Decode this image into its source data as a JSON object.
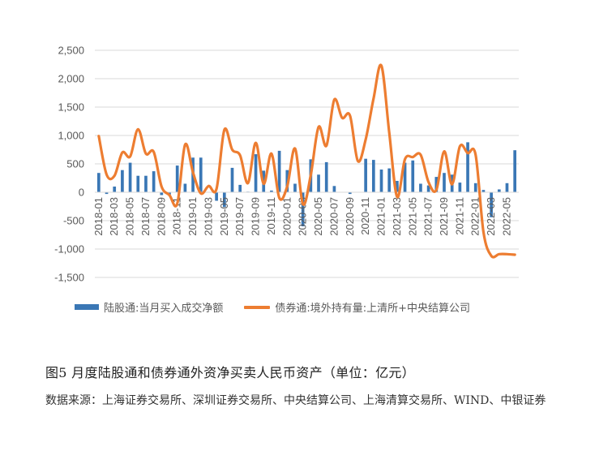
{
  "chart_data": {
    "type": "bar+line",
    "x": [
      "2018-01",
      "2018-02",
      "2018-03",
      "2018-04",
      "2018-05",
      "2018-06",
      "2018-07",
      "2018-08",
      "2018-09",
      "2018-10",
      "2018-11",
      "2018-12",
      "2019-01",
      "2019-02",
      "2019-03",
      "2019-04",
      "2019-05",
      "2019-06",
      "2019-07",
      "2019-08",
      "2019-09",
      "2019-10",
      "2019-11",
      "2019-12",
      "2020-01",
      "2020-02",
      "2020-03",
      "2020-04",
      "2020-05",
      "2020-06",
      "2020-07",
      "2020-08",
      "2020-09",
      "2020-10",
      "2020-11",
      "2020-12",
      "2021-01",
      "2021-02",
      "2021-03",
      "2021-04",
      "2021-05",
      "2021-06",
      "2021-07",
      "2021-08",
      "2021-09",
      "2021-10",
      "2021-11",
      "2021-12",
      "2022-01",
      "2022-02",
      "2022-03",
      "2022-04",
      "2022-05",
      "2022-06"
    ],
    "x_tick_labels": [
      "2018-01",
      "2018-03",
      "2018-05",
      "2018-07",
      "2018-09",
      "2018-11",
      "2019-01",
      "2019-03",
      "2019-05",
      "2019-07",
      "2019-09",
      "2019-11",
      "2020-01",
      "2020-03",
      "2020-05",
      "2020-07",
      "2020-09",
      "2020-11",
      "2021-01",
      "2021-03",
      "2021-05",
      "2021-07",
      "2021-09",
      "2021-11",
      "2022-01",
      "2022-03",
      "2022-05"
    ],
    "y_ticks": [
      "2,500",
      "2,000",
      "1,500",
      "1,000",
      "500",
      "0",
      "-500",
      "-1,000",
      "-1,500"
    ],
    "ylim": [
      -1500,
      2500
    ],
    "grid": true,
    "series": [
      {
        "name": "陆股通:当月买入成交净额",
        "type": "bar",
        "color": "#3a77b5",
        "values": [
          340,
          -30,
          100,
          390,
          520,
          290,
          290,
          370,
          -50,
          -40,
          470,
          150,
          610,
          610,
          0,
          -150,
          -260,
          430,
          130,
          10,
          670,
          380,
          30,
          730,
          390,
          150,
          -600,
          580,
          310,
          530,
          110,
          0,
          -30,
          0,
          590,
          570,
          400,
          420,
          200,
          520,
          560,
          150,
          120,
          270,
          340,
          310,
          170,
          880,
          160,
          40,
          -440,
          50,
          160,
          740
        ]
      },
      {
        "name": "债券通:境外持有量:上清所+中央结算公司",
        "type": "line",
        "color": "#ed7d31",
        "values": [
          990,
          310,
          290,
          700,
          630,
          1110,
          680,
          710,
          100,
          -50,
          -200,
          840,
          350,
          -20,
          110,
          60,
          1100,
          750,
          650,
          160,
          870,
          150,
          680,
          -100,
          100,
          770,
          -210,
          300,
          1150,
          820,
          1630,
          1310,
          1350,
          550,
          930,
          1650,
          2230,
          1050,
          -80,
          580,
          620,
          660,
          180,
          40,
          720,
          140,
          810,
          690,
          660,
          -700,
          -1120,
          -1090,
          -1090,
          -1100
        ]
      }
    ]
  },
  "legend": {
    "bar_label": "陆股通:当月买入成交净额",
    "line_label": "债券通:境外持有量:上清所+中央结算公司"
  },
  "caption": "图5 月度陆股通和债券通外资净买卖人民币资产（单位：亿元）",
  "source": "数据来源：上海证券交易所、深圳证券交易所、中央结算公司、上海清算交易所、WIND、中银证券"
}
